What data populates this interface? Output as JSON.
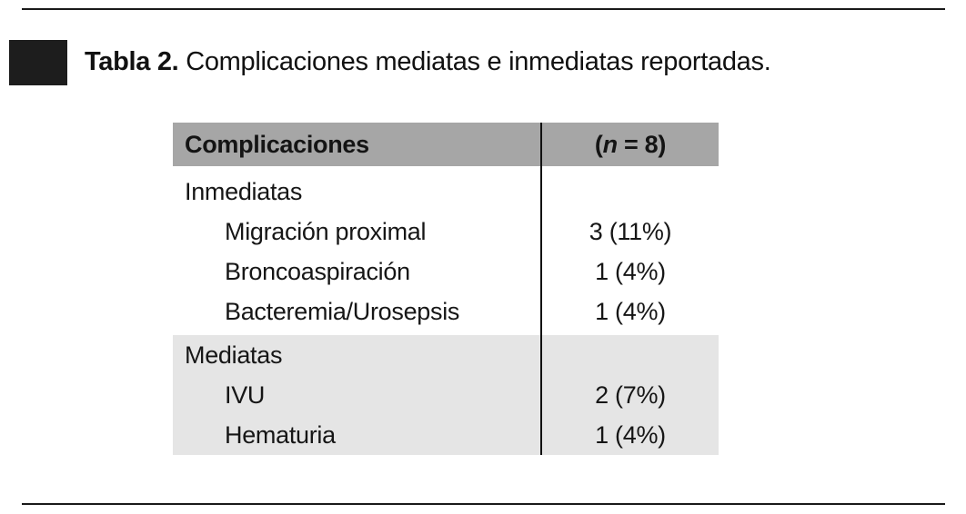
{
  "caption": {
    "label": "Tabla 2.",
    "text": "Complicaciones mediatas e inmediatas reportadas."
  },
  "table": {
    "header": {
      "complications": "Complicaciones",
      "n_open": "(",
      "n_var": "n",
      "n_rest": " = 8)"
    },
    "sections": [
      {
        "name": "Inmediatas",
        "rows": [
          {
            "label": "Migración proximal",
            "value": "3 (11%)"
          },
          {
            "label": "Broncoaspiración",
            "value": "1 (4%)"
          },
          {
            "label": "Bacteremia/Urosepsis",
            "value": "1 (4%)"
          }
        ]
      },
      {
        "name": "Mediatas",
        "rows": [
          {
            "label": "IVU",
            "value": "2 (7%)"
          },
          {
            "label": "Hematuria",
            "value": "1 (4%)"
          }
        ]
      }
    ]
  },
  "colors": {
    "header_bg": "#a6a6a6",
    "section_shade": "#e5e5e5",
    "rule": "#1a1a1a",
    "caption_square": "#1d1d1d"
  }
}
